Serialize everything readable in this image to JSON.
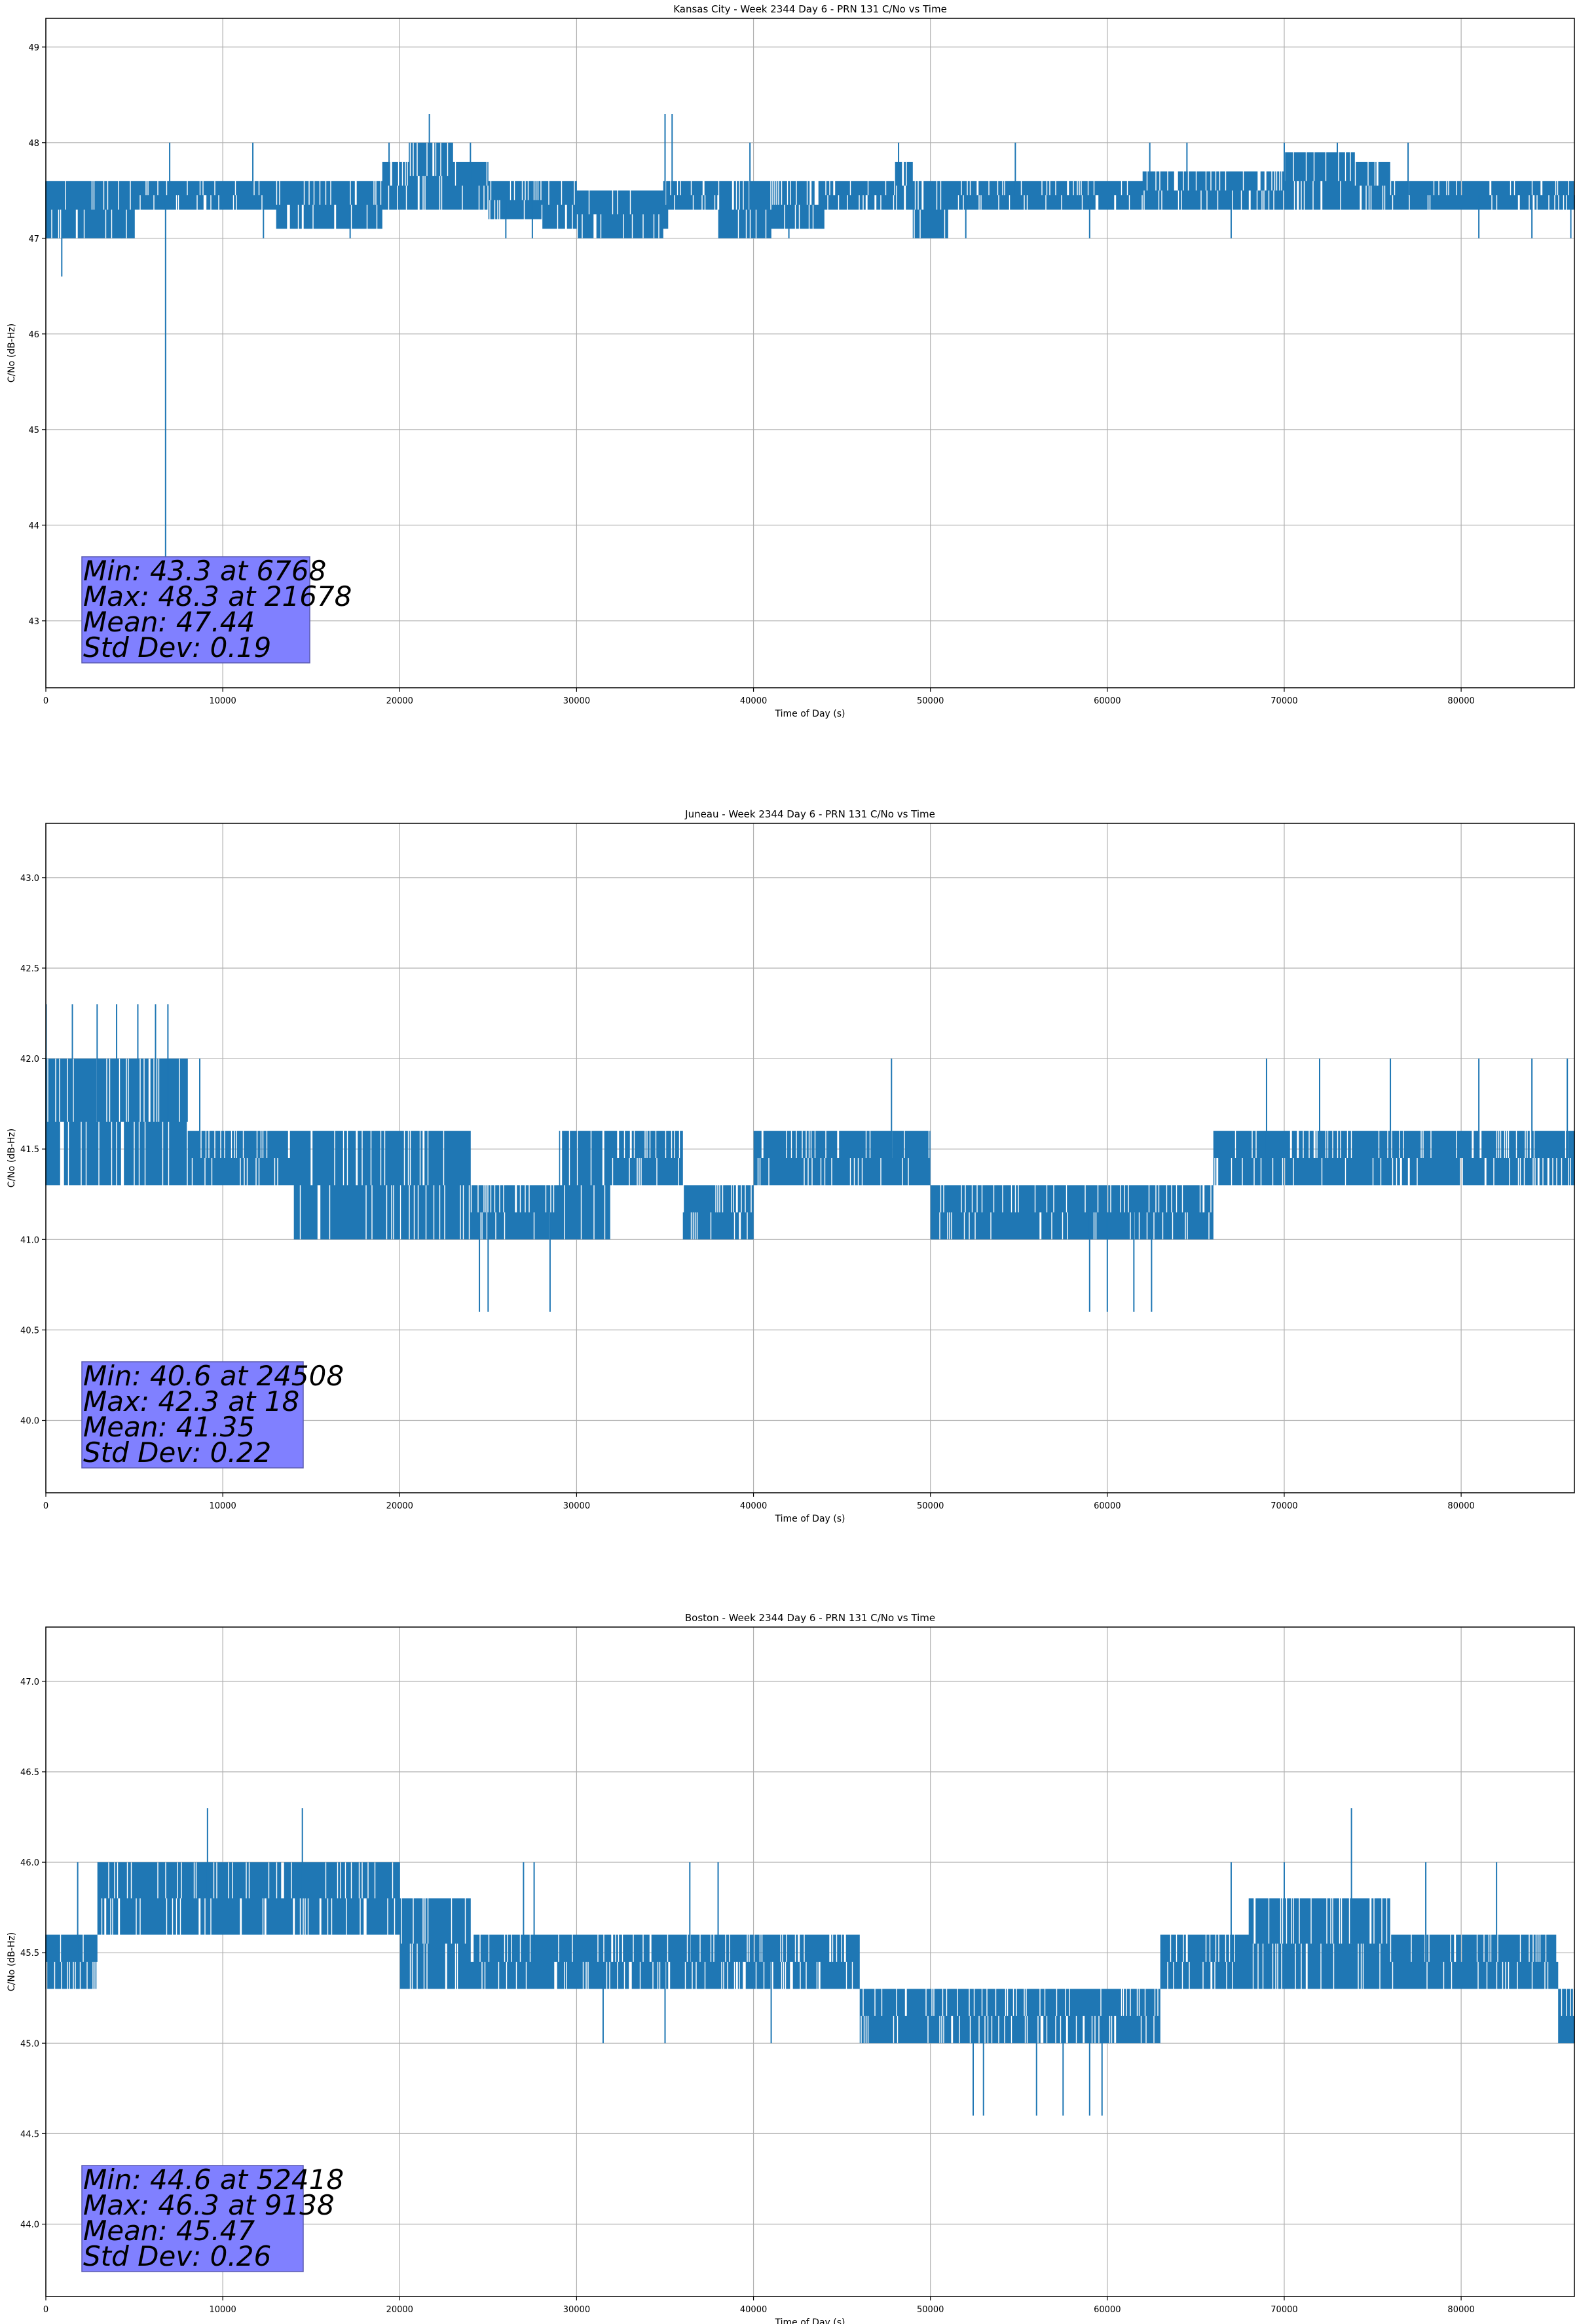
{
  "chart_data": [
    {
      "type": "line",
      "title": "Kansas City - Week 2344 Day 6 - PRN 131 C/No vs Time",
      "xlabel": "Time of Day (s)",
      "ylabel": "C/No (dB-Hz)",
      "xlim": [
        0,
        86400
      ],
      "ylim": [
        42.3,
        49.3
      ],
      "xticks": [
        0,
        10000,
        20000,
        30000,
        40000,
        50000,
        60000,
        70000,
        80000
      ],
      "yticks": [
        43,
        44,
        45,
        46,
        47,
        48,
        49
      ],
      "ytick_decimals": 0,
      "grid": true,
      "color": "#1f77b4",
      "band": [
        [
          0,
          47.0,
          47.6
        ],
        [
          5000,
          47.3,
          47.6
        ],
        [
          7000,
          47.3,
          47.6
        ],
        [
          11500,
          47.3,
          47.6
        ],
        [
          13000,
          47.1,
          47.6
        ],
        [
          19000,
          47.3,
          47.8
        ],
        [
          20500,
          47.3,
          48.0
        ],
        [
          23000,
          47.3,
          47.8
        ],
        [
          25000,
          47.2,
          47.6
        ],
        [
          28000,
          47.1,
          47.6
        ],
        [
          30000,
          47.0,
          47.5
        ],
        [
          33000,
          47.0,
          47.5
        ],
        [
          34900,
          47.1,
          47.6
        ],
        [
          35200,
          47.3,
          47.6
        ],
        [
          36000,
          47.3,
          47.6
        ],
        [
          38000,
          47.0,
          47.6
        ],
        [
          41000,
          47.1,
          47.6
        ],
        [
          44000,
          47.3,
          47.6
        ],
        [
          48000,
          47.3,
          47.8
        ],
        [
          49000,
          47.0,
          47.6
        ],
        [
          51000,
          47.3,
          47.6
        ],
        [
          60000,
          47.3,
          47.6
        ],
        [
          62000,
          47.3,
          47.7
        ],
        [
          66000,
          47.3,
          47.7
        ],
        [
          70000,
          47.3,
          47.9
        ],
        [
          74000,
          47.3,
          47.8
        ],
        [
          76000,
          47.3,
          47.6
        ],
        [
          80000,
          47.3,
          47.6
        ],
        [
          86400,
          47.3,
          47.6
        ]
      ],
      "extremes": [
        [
          6768,
          43.3
        ],
        [
          900,
          46.6
        ],
        [
          7000,
          48.0
        ],
        [
          11700,
          48.0
        ],
        [
          19400,
          48.0
        ],
        [
          21678,
          48.3
        ],
        [
          24000,
          48.0
        ],
        [
          35000,
          48.3
        ],
        [
          35400,
          48.3
        ],
        [
          39800,
          48.0
        ],
        [
          48200,
          48.0
        ],
        [
          54800,
          48.0
        ],
        [
          62400,
          48.0
        ],
        [
          64500,
          48.0
        ],
        [
          70000,
          48.0
        ],
        [
          73000,
          48.0
        ],
        [
          77000,
          48.0
        ],
        [
          1000,
          47.0
        ],
        [
          4300,
          47.0
        ],
        [
          12300,
          47.0
        ],
        [
          17200,
          47.0
        ],
        [
          26000,
          47.0
        ],
        [
          27500,
          47.0
        ],
        [
          42000,
          47.0
        ],
        [
          49500,
          47.0
        ],
        [
          52000,
          47.0
        ],
        [
          59000,
          47.0
        ],
        [
          67000,
          47.0
        ],
        [
          81000,
          47.0
        ],
        [
          84000,
          47.0
        ],
        [
          86200,
          47.0
        ]
      ],
      "stats": [
        "Min: 43.3 at 6768",
        "Max: 48.3 at 21678",
        "Mean: 47.44",
        "Std Dev: 0.19"
      ]
    },
    {
      "type": "line",
      "title": "Juneau - Week 2344 Day 6 - PRN 131 C/No vs Time",
      "xlabel": "Time of Day (s)",
      "ylabel": "C/No (dB-Hz)",
      "xlim": [
        0,
        86400
      ],
      "ylim": [
        39.6,
        43.3
      ],
      "xticks": [
        0,
        10000,
        20000,
        30000,
        40000,
        50000,
        60000,
        70000,
        80000
      ],
      "yticks": [
        40.0,
        40.5,
        41.0,
        41.5,
        42.0,
        42.5,
        43.0
      ],
      "ytick_decimals": 1,
      "grid": true,
      "color": "#1f77b4",
      "band": [
        [
          0,
          41.3,
          42.0
        ],
        [
          2000,
          41.3,
          42.0
        ],
        [
          5000,
          41.3,
          42.0
        ],
        [
          8000,
          41.3,
          41.6
        ],
        [
          10000,
          41.3,
          41.6
        ],
        [
          14000,
          41.0,
          41.6
        ],
        [
          17000,
          41.0,
          41.6
        ],
        [
          20000,
          41.0,
          41.6
        ],
        [
          24000,
          41.0,
          41.3
        ],
        [
          27000,
          41.0,
          41.3
        ],
        [
          29000,
          41.0,
          41.6
        ],
        [
          32000,
          41.3,
          41.6
        ],
        [
          36000,
          41.0,
          41.3
        ],
        [
          39000,
          41.0,
          41.3
        ],
        [
          40000,
          41.3,
          41.6
        ],
        [
          46000,
          41.3,
          41.6
        ],
        [
          48000,
          41.3,
          41.6
        ],
        [
          50000,
          41.0,
          41.3
        ],
        [
          58000,
          41.0,
          41.3
        ],
        [
          61000,
          41.0,
          41.3
        ],
        [
          64000,
          41.0,
          41.3
        ],
        [
          66000,
          41.3,
          41.6
        ],
        [
          70000,
          41.3,
          41.6
        ],
        [
          78000,
          41.3,
          41.6
        ],
        [
          86400,
          41.3,
          41.6
        ]
      ],
      "extremes": [
        [
          18,
          42.3
        ],
        [
          1500,
          42.3
        ],
        [
          2900,
          42.3
        ],
        [
          4000,
          42.3
        ],
        [
          5200,
          42.3
        ],
        [
          6200,
          42.3
        ],
        [
          6900,
          42.3
        ],
        [
          47800,
          42.0
        ],
        [
          69000,
          42.0
        ],
        [
          72000,
          42.0
        ],
        [
          76000,
          42.0
        ],
        [
          81000,
          42.0
        ],
        [
          84000,
          42.0
        ],
        [
          86000,
          42.0
        ],
        [
          8700,
          42.0
        ],
        [
          24508,
          40.6
        ],
        [
          25000,
          40.6
        ],
        [
          28500,
          40.6
        ],
        [
          59000,
          40.6
        ],
        [
          60000,
          40.6
        ],
        [
          61500,
          40.6
        ],
        [
          62500,
          40.6
        ]
      ],
      "stats": [
        "Min: 40.6 at 24508",
        "Max: 42.3 at 18",
        "Mean: 41.35",
        "Std Dev: 0.22"
      ]
    },
    {
      "type": "line",
      "title": "Boston - Week 2344 Day 6 - PRN 131 C/No vs Time",
      "xlabel": "Time of Day (s)",
      "ylabel": "C/No (dB-Hz)",
      "xlim": [
        0,
        86400
      ],
      "ylim": [
        43.6,
        47.3
      ],
      "xticks": [
        0,
        10000,
        20000,
        30000,
        40000,
        50000,
        60000,
        70000,
        80000
      ],
      "yticks": [
        44.0,
        44.5,
        45.0,
        45.5,
        46.0,
        46.5,
        47.0
      ],
      "ytick_decimals": 1,
      "grid": true,
      "color": "#1f77b4",
      "band": [
        [
          0,
          45.3,
          45.6
        ],
        [
          2800,
          45.3,
          45.6
        ],
        [
          2900,
          45.6,
          46.0
        ],
        [
          8000,
          45.6,
          46.0
        ],
        [
          12000,
          45.6,
          46.0
        ],
        [
          16000,
          45.6,
          46.0
        ],
        [
          20000,
          45.3,
          45.8
        ],
        [
          24000,
          45.3,
          45.6
        ],
        [
          30000,
          45.3,
          45.6
        ],
        [
          34000,
          45.3,
          45.6
        ],
        [
          40000,
          45.3,
          45.6
        ],
        [
          44000,
          45.3,
          45.6
        ],
        [
          46000,
          45.0,
          45.3
        ],
        [
          50000,
          45.0,
          45.3
        ],
        [
          54000,
          45.0,
          45.3
        ],
        [
          58000,
          45.0,
          45.3
        ],
        [
          61000,
          45.0,
          45.3
        ],
        [
          63000,
          45.3,
          45.6
        ],
        [
          66000,
          45.3,
          45.6
        ],
        [
          68000,
          45.3,
          45.8
        ],
        [
          72000,
          45.3,
          45.8
        ],
        [
          76000,
          45.3,
          45.6
        ],
        [
          80000,
          45.3,
          45.6
        ],
        [
          85000,
          45.3,
          45.6
        ],
        [
          85500,
          45.0,
          45.3
        ],
        [
          86400,
          45.0,
          45.3
        ]
      ],
      "extremes": [
        [
          9138,
          46.3
        ],
        [
          14500,
          46.3
        ],
        [
          73800,
          46.3
        ],
        [
          1800,
          46.0
        ],
        [
          27000,
          46.0
        ],
        [
          27600,
          46.0
        ],
        [
          36400,
          46.0
        ],
        [
          38000,
          46.0
        ],
        [
          67000,
          46.0
        ],
        [
          70000,
          46.0
        ],
        [
          78000,
          46.0
        ],
        [
          82000,
          46.0
        ],
        [
          52418,
          44.6
        ],
        [
          53000,
          44.6
        ],
        [
          56000,
          44.6
        ],
        [
          57500,
          44.6
        ],
        [
          59000,
          44.6
        ],
        [
          59700,
          44.6
        ],
        [
          31500,
          45.0
        ],
        [
          35000,
          45.0
        ],
        [
          41000,
          45.0
        ]
      ],
      "stats": [
        "Min: 44.6 at 52418",
        "Max: 46.3 at 9138",
        "Mean: 45.47",
        "Std Dev: 0.26"
      ]
    }
  ]
}
